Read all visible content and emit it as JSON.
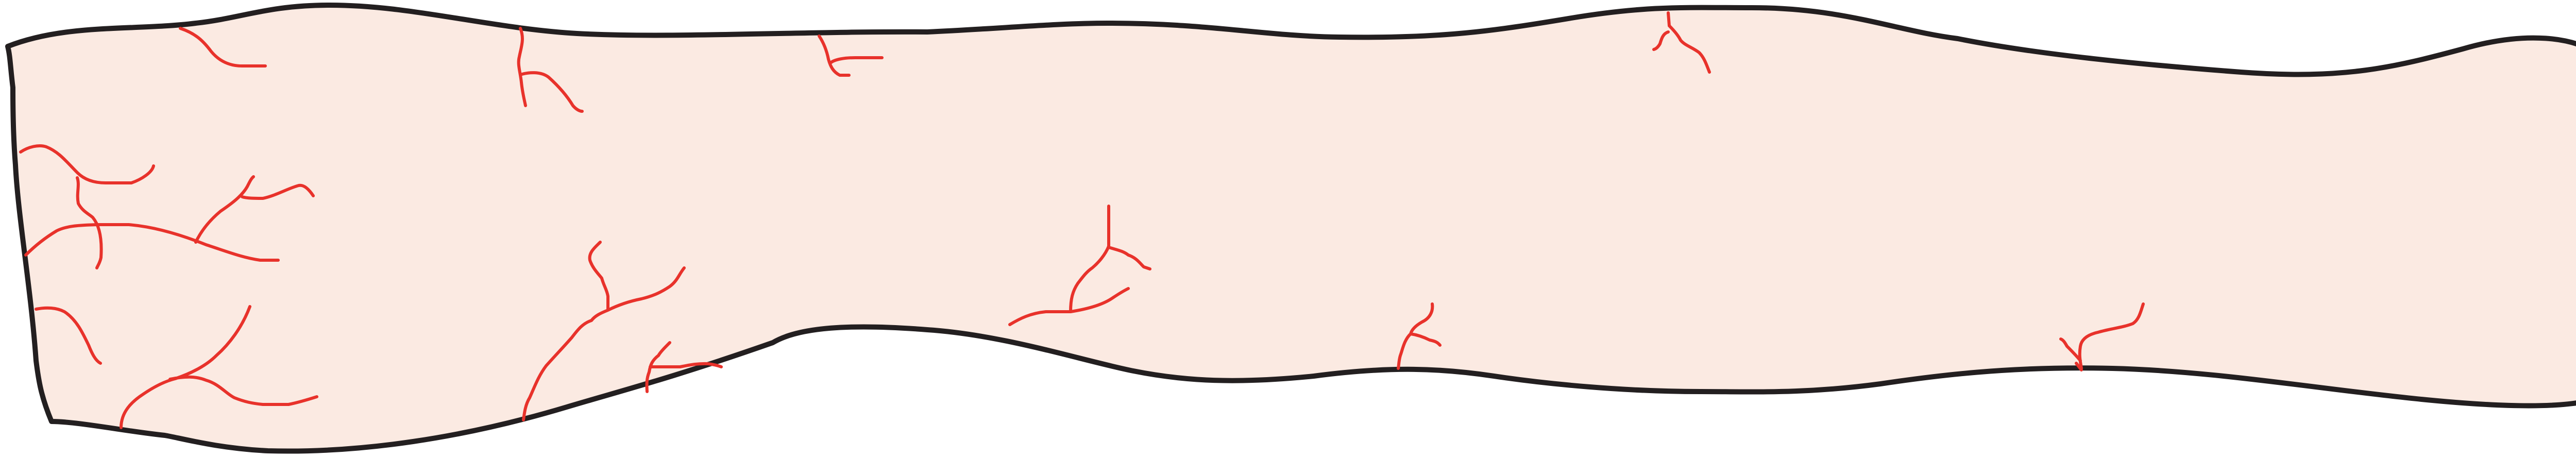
{
  "figure": {
    "subject": "tissue-strip-with-capillaries",
    "colors": {
      "background": "#ffffff",
      "tissue_fill": "#fbeae2",
      "outline": "#231f20",
      "vessel": "#e8322b"
    },
    "vessel_cluster_count": 14
  }
}
